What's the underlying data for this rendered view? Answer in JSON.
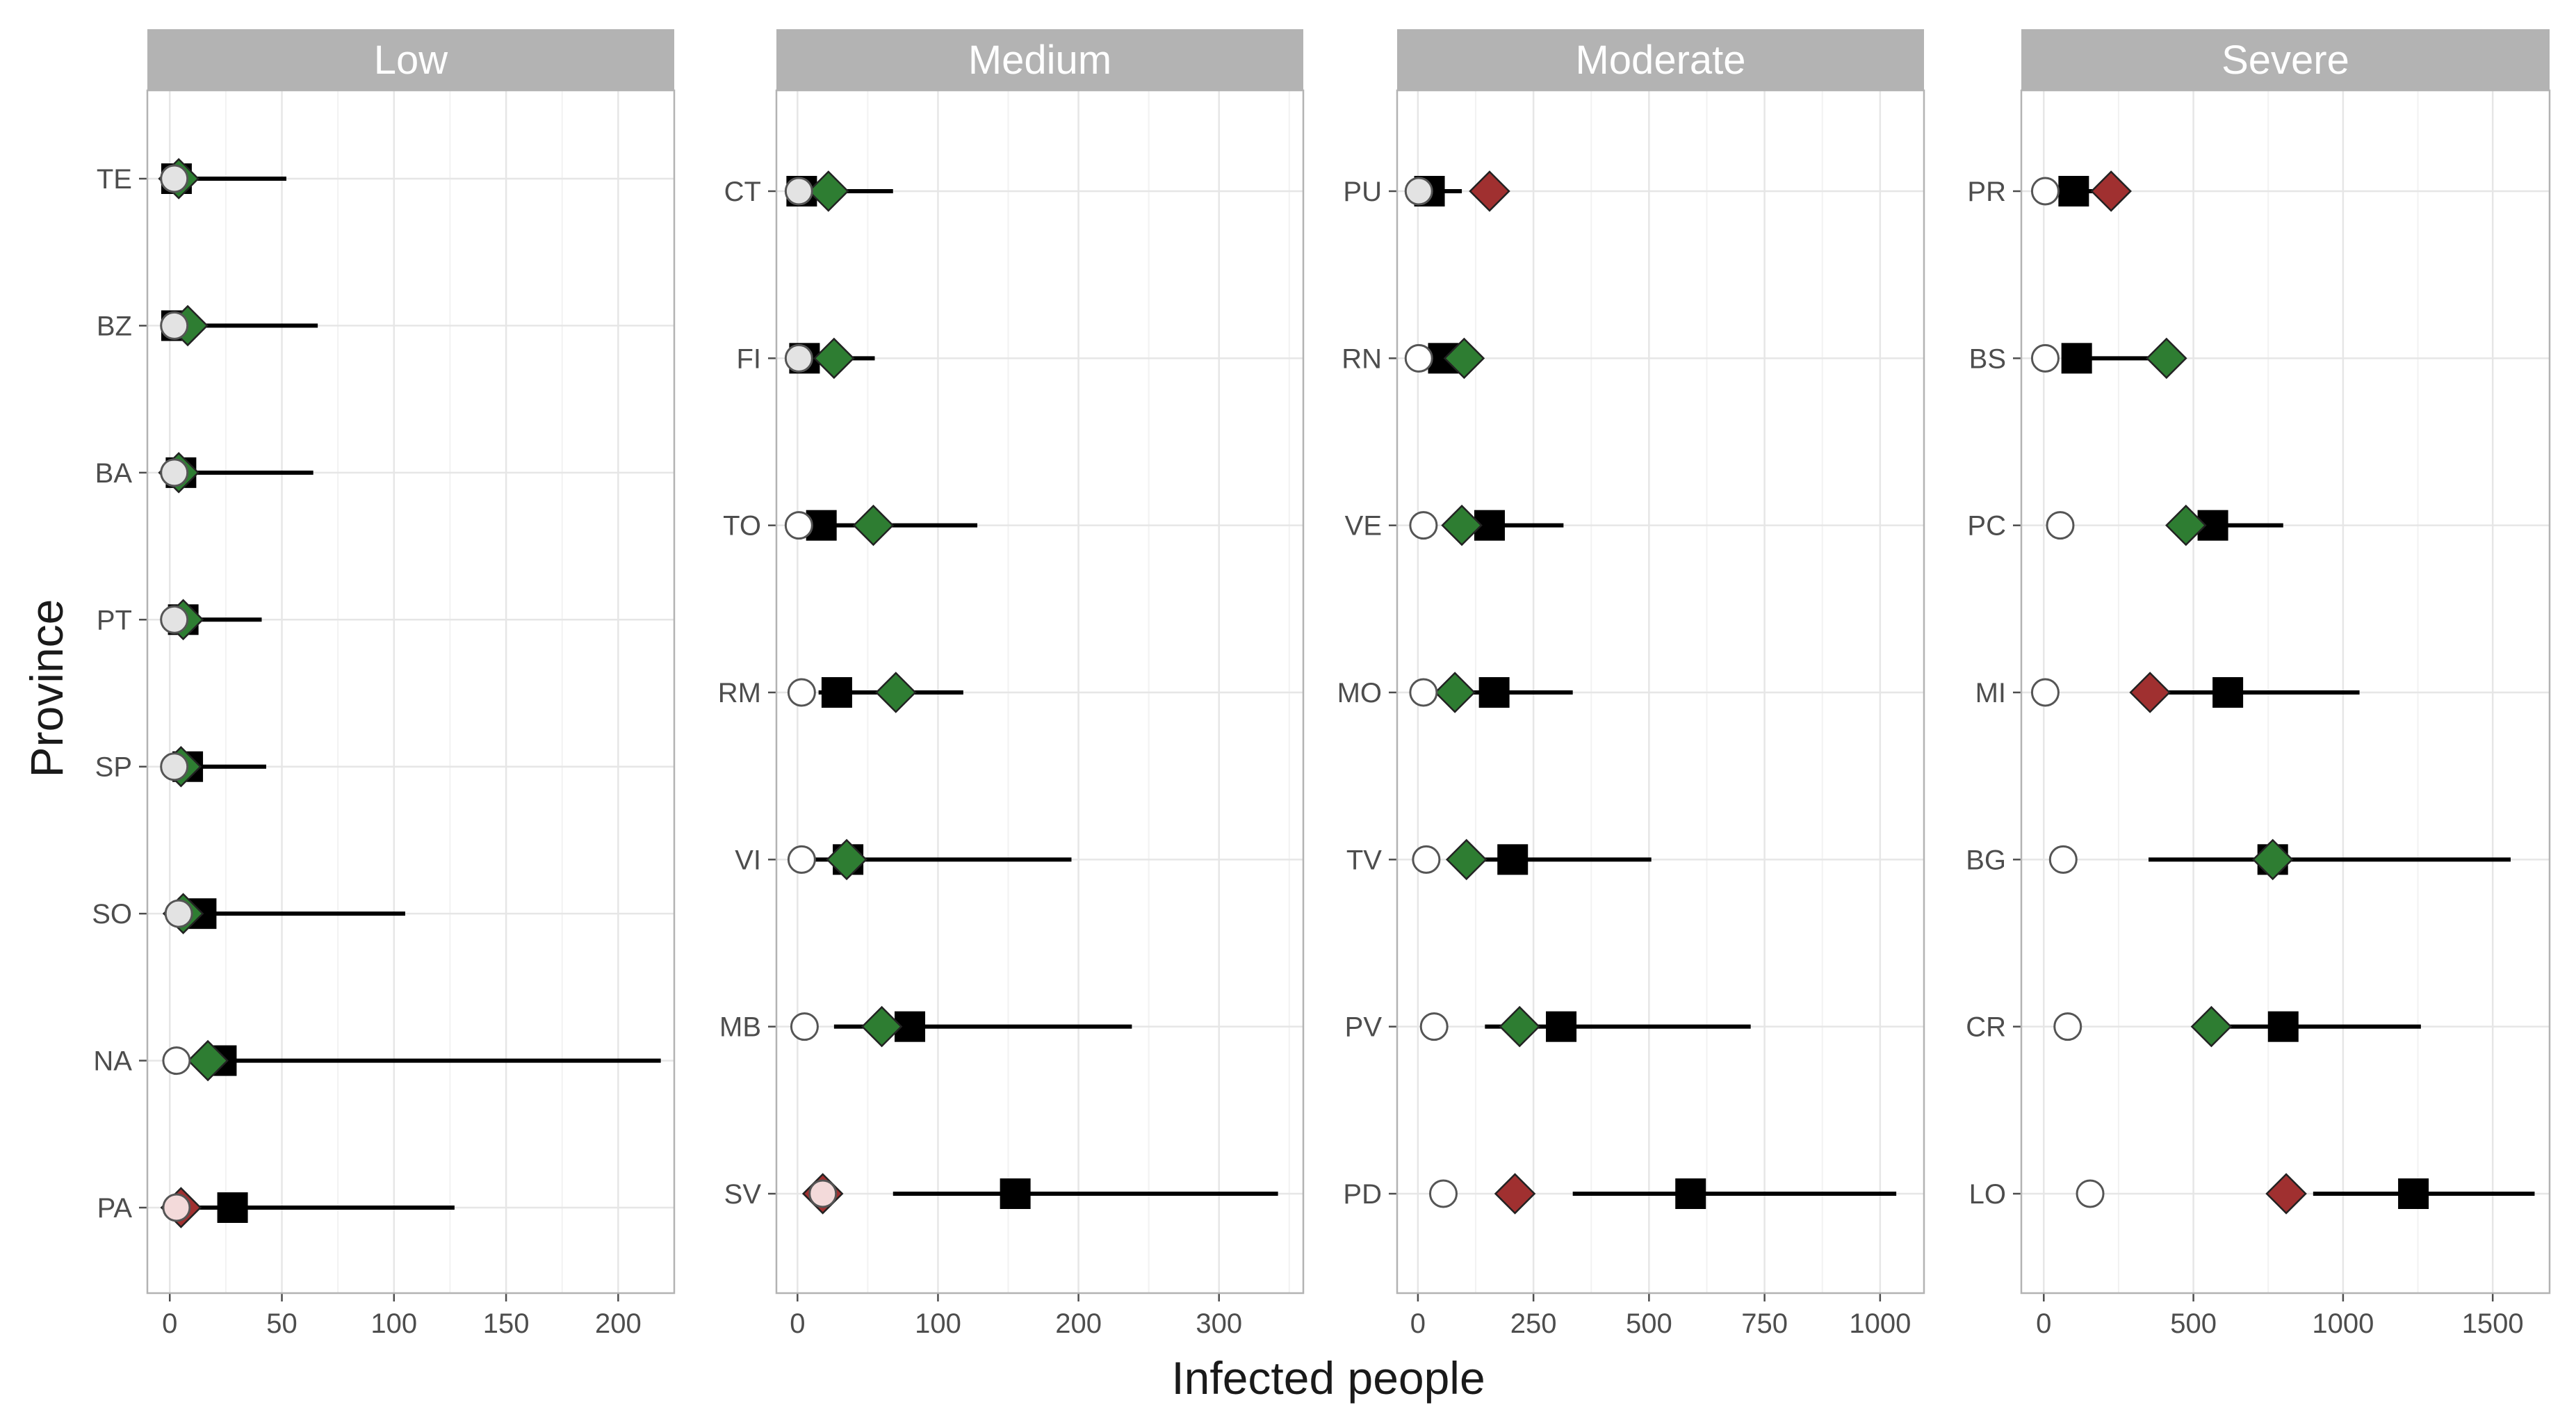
{
  "chart_data": {
    "type": "faceted-range-dot-plot",
    "x_axis_label": "Infected people",
    "y_axis_label": "Province",
    "legend": "none",
    "grid": true,
    "marker_colors": {
      "observed_circle": "#ffffff",
      "estimate_square": "#000000",
      "diamond_green": "#2e7d32",
      "diamond_red": "#a03030"
    },
    "marker_meaning": {
      "circle": "open circle (light grey when overlapped)",
      "square": "black square with horizontal interval line",
      "diamond": "diamond, green or red"
    },
    "facets": [
      {
        "name": "Low",
        "xlim": [
          -10,
          225
        ],
        "xticks": [
          0,
          50,
          100,
          150,
          200
        ],
        "rows": [
          {
            "province": "TE",
            "circle": 2,
            "square": 3,
            "diamond": 4,
            "diamond_color": "green",
            "low": 0,
            "high": 52
          },
          {
            "province": "BZ",
            "circle": 2,
            "square": 3,
            "diamond": 8,
            "diamond_color": "green",
            "low": 0,
            "high": 66
          },
          {
            "province": "BA",
            "circle": 2,
            "square": 5,
            "diamond": 4,
            "diamond_color": "green",
            "low": 0,
            "high": 64
          },
          {
            "province": "PT",
            "circle": 2,
            "square": 6,
            "diamond": 6,
            "diamond_color": "green",
            "low": 0,
            "high": 41
          },
          {
            "province": "SP",
            "circle": 2,
            "square": 8,
            "diamond": 5,
            "diamond_color": "green",
            "low": 0,
            "high": 43
          },
          {
            "province": "SO",
            "circle": 4,
            "square": 14,
            "diamond": 6,
            "diamond_color": "green",
            "low": 0,
            "high": 105
          },
          {
            "province": "NA",
            "circle": 3,
            "square": 23,
            "diamond": 17,
            "diamond_color": "green",
            "low": 12,
            "high": 219
          },
          {
            "province": "PA",
            "circle": 3,
            "square": 28,
            "diamond": 5,
            "diamond_color": "red",
            "low": 10,
            "high": 127
          }
        ]
      },
      {
        "name": "Medium",
        "xlim": [
          -15,
          360
        ],
        "xticks": [
          0,
          100,
          200,
          300
        ],
        "rows": [
          {
            "province": "CT",
            "circle": 1,
            "square": 3,
            "diamond": 22,
            "diamond_color": "green",
            "low": 0,
            "high": 68
          },
          {
            "province": "FI",
            "circle": 1,
            "square": 5,
            "diamond": 26,
            "diamond_color": "green",
            "low": 0,
            "high": 55
          },
          {
            "province": "TO",
            "circle": 1,
            "square": 17,
            "diamond": 54,
            "diamond_color": "green",
            "low": 0,
            "high": 128
          },
          {
            "province": "RM",
            "circle": 3,
            "square": 28,
            "diamond": 70,
            "diamond_color": "green",
            "low": 15,
            "high": 118
          },
          {
            "province": "VI",
            "circle": 3,
            "square": 36,
            "diamond": 35,
            "diamond_color": "green",
            "low": 10,
            "high": 195
          },
          {
            "province": "MB",
            "circle": 5,
            "square": 80,
            "diamond": 60,
            "diamond_color": "green",
            "low": 26,
            "high": 238
          },
          {
            "province": "SV",
            "circle": 18,
            "square": 155,
            "diamond": 18,
            "diamond_color": "red",
            "low": 68,
            "high": 342
          }
        ]
      },
      {
        "name": "Moderate",
        "xlim": [
          -45,
          1095
        ],
        "xticks": [
          0,
          250,
          500,
          750,
          1000
        ],
        "rows": [
          {
            "province": "PU",
            "circle": 2,
            "square": 25,
            "diamond": 155,
            "diamond_color": "red",
            "low": 0,
            "high": 95
          },
          {
            "province": "RN",
            "circle": 2,
            "square": 55,
            "diamond": 100,
            "diamond_color": "green",
            "low": 0,
            "high": 125
          },
          {
            "province": "VE",
            "circle": 12,
            "square": 155,
            "diamond": 95,
            "diamond_color": "green",
            "low": 80,
            "high": 315
          },
          {
            "province": "MO",
            "circle": 12,
            "square": 165,
            "diamond": 80,
            "diamond_color": "green",
            "low": 95,
            "high": 335
          },
          {
            "province": "TV",
            "circle": 18,
            "square": 205,
            "diamond": 105,
            "diamond_color": "green",
            "low": 105,
            "high": 505
          },
          {
            "province": "PV",
            "circle": 35,
            "square": 310,
            "diamond": 220,
            "diamond_color": "green",
            "low": 145,
            "high": 720
          },
          {
            "province": "PD",
            "circle": 55,
            "square": 590,
            "diamond": 210,
            "diamond_color": "red",
            "low": 335,
            "high": 1035
          }
        ]
      },
      {
        "name": "Severe",
        "xlim": [
          -75,
          1690
        ],
        "xticks": [
          0,
          500,
          1000,
          1500
        ],
        "rows": [
          {
            "province": "PR",
            "circle": 5,
            "square": 100,
            "diamond": 225,
            "diamond_color": "red",
            "low": 60,
            "high": 200
          },
          {
            "province": "BS",
            "circle": 5,
            "square": 110,
            "diamond": 410,
            "diamond_color": "green",
            "low": 60,
            "high": 350
          },
          {
            "province": "PC",
            "circle": 55,
            "square": 565,
            "diamond": 475,
            "diamond_color": "green",
            "low": 430,
            "high": 800
          },
          {
            "province": "MI",
            "circle": 5,
            "square": 615,
            "diamond": 355,
            "diamond_color": "red",
            "low": 390,
            "high": 1055
          },
          {
            "province": "BG",
            "circle": 65,
            "square": 765,
            "diamond": 765,
            "diamond_color": "green",
            "low": 350,
            "high": 1560
          },
          {
            "province": "CR",
            "circle": 80,
            "square": 800,
            "diamond": 560,
            "diamond_color": "green",
            "low": 560,
            "high": 1260
          },
          {
            "province": "LO",
            "circle": 155,
            "square": 1235,
            "diamond": 810,
            "diamond_color": "red",
            "low": 900,
            "high": 1640
          }
        ]
      }
    ]
  }
}
